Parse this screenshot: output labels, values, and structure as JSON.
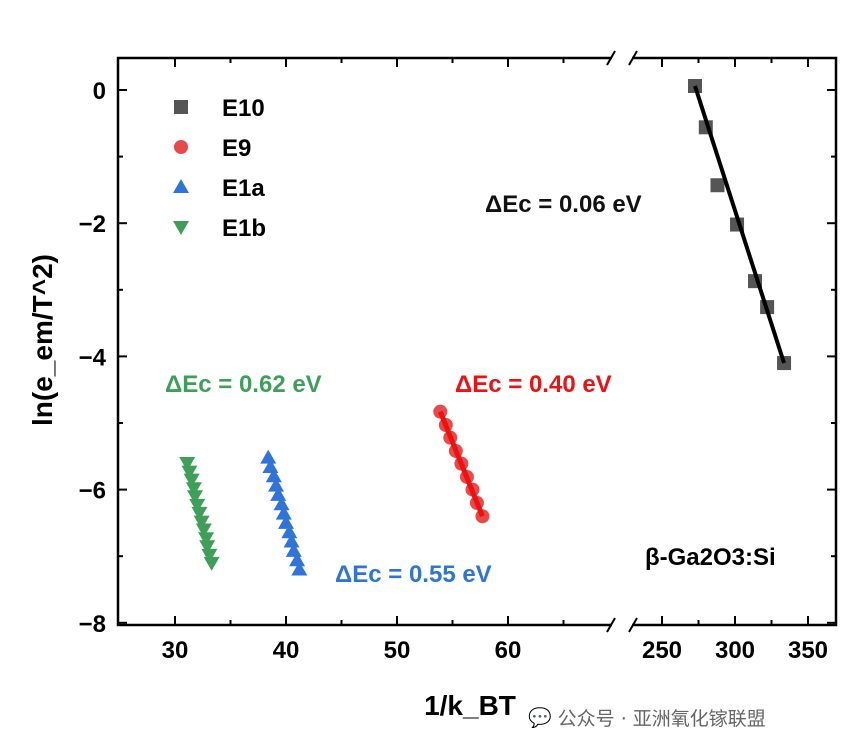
{
  "chart_data": {
    "type": "scatter",
    "xlabel": "1/k_BT",
    "ylabel": "ln(e_em/T^2)",
    "ylim": [
      -8,
      0.5
    ],
    "yticks": [
      0,
      -2,
      -4,
      -6,
      -8
    ],
    "x_segments": [
      {
        "xlim": [
          25,
          73
        ],
        "ticks": [
          30,
          40,
          50,
          60
        ]
      },
      {
        "xlim": [
          222,
          370
        ],
        "ticks": [
          250,
          300,
          350
        ]
      }
    ],
    "axis_break": true,
    "legend_position": "top-left",
    "series": [
      {
        "name": "E10",
        "marker": "square",
        "color": "#555555",
        "fit_color": "#000000",
        "annotation": "ΔEc = 0.06 eV",
        "x": [
          272.6,
          280,
          288,
          301.4,
          313.7,
          322,
          333.6
        ],
        "y": [
          0.06,
          -0.56,
          -1.43,
          -2.02,
          -2.87,
          -3.26,
          -4.1
        ]
      },
      {
        "name": "E9",
        "marker": "circle",
        "color": "#e84a4a",
        "fit_color": "#ee1111",
        "annotation": "ΔEc = 0.40 eV",
        "x": [
          53.9,
          54.4,
          54.8,
          55.3,
          55.8,
          56.3,
          56.8,
          57.2,
          57.7
        ],
        "y": [
          -4.83,
          -5.03,
          -5.22,
          -5.42,
          -5.61,
          -5.81,
          -6.0,
          -6.2,
          -6.4
        ]
      },
      {
        "name": "E1a",
        "marker": "triangle-up",
        "color": "#2f74d6",
        "annotation": "ΔEc = 0.55 eV",
        "x": [
          38.4,
          38.6,
          38.9,
          39.1,
          39.3,
          39.6,
          39.8,
          40.0,
          40.3,
          40.5,
          40.7,
          41.0,
          41.2
        ],
        "y": [
          -5.52,
          -5.66,
          -5.8,
          -5.94,
          -6.08,
          -6.22,
          -6.36,
          -6.5,
          -6.64,
          -6.78,
          -6.92,
          -7.06,
          -7.2
        ]
      },
      {
        "name": "E1b",
        "marker": "triangle-down",
        "color": "#3f9f5a",
        "annotation": "ΔEc = 0.62 eV",
        "x": [
          31.1,
          31.3,
          31.5,
          31.7,
          31.8,
          32.0,
          32.2,
          32.4,
          32.6,
          32.8,
          32.9,
          33.1,
          33.3
        ],
        "y": [
          -5.6,
          -5.73,
          -5.85,
          -5.98,
          -6.1,
          -6.23,
          -6.35,
          -6.48,
          -6.6,
          -6.73,
          -6.85,
          -6.98,
          -7.1
        ]
      }
    ],
    "material_label": "β-Ga2O3:Si"
  },
  "watermark": "公众号 · 亚洲氧化镓联盟"
}
